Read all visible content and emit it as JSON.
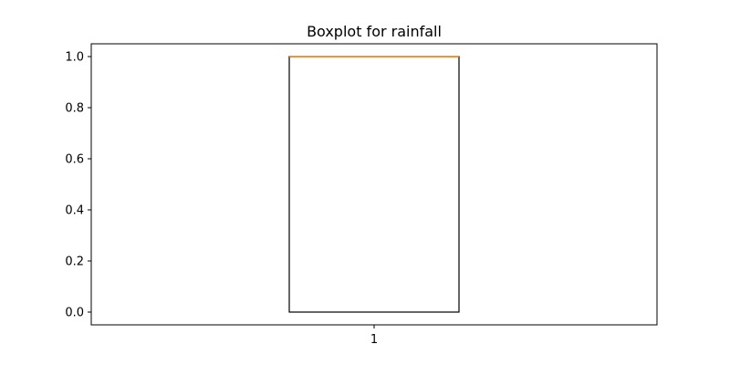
{
  "chart_data": {
    "type": "boxplot",
    "title": "Boxplot for rainfall",
    "xlabel": "",
    "ylabel": "",
    "categories": [
      "1"
    ],
    "boxes": [
      {
        "label": "1",
        "whisker_low": 0.0,
        "q1": 0.0,
        "median": 1.0,
        "q3": 1.0,
        "whisker_high": 1.0,
        "outliers": []
      }
    ],
    "ylim": [
      -0.05,
      1.05
    ],
    "xlim": [
      0.5,
      1.5
    ],
    "yticks": [
      0.0,
      0.2,
      0.4,
      0.6,
      0.8,
      1.0
    ],
    "ytick_labels": [
      "0.0",
      "0.2",
      "0.4",
      "0.6",
      "0.8",
      "1.0"
    ],
    "grid": false,
    "colors": {
      "box": "#000000",
      "median": "#ff7f0e",
      "axes": "#000000",
      "background": "#ffffff"
    }
  }
}
